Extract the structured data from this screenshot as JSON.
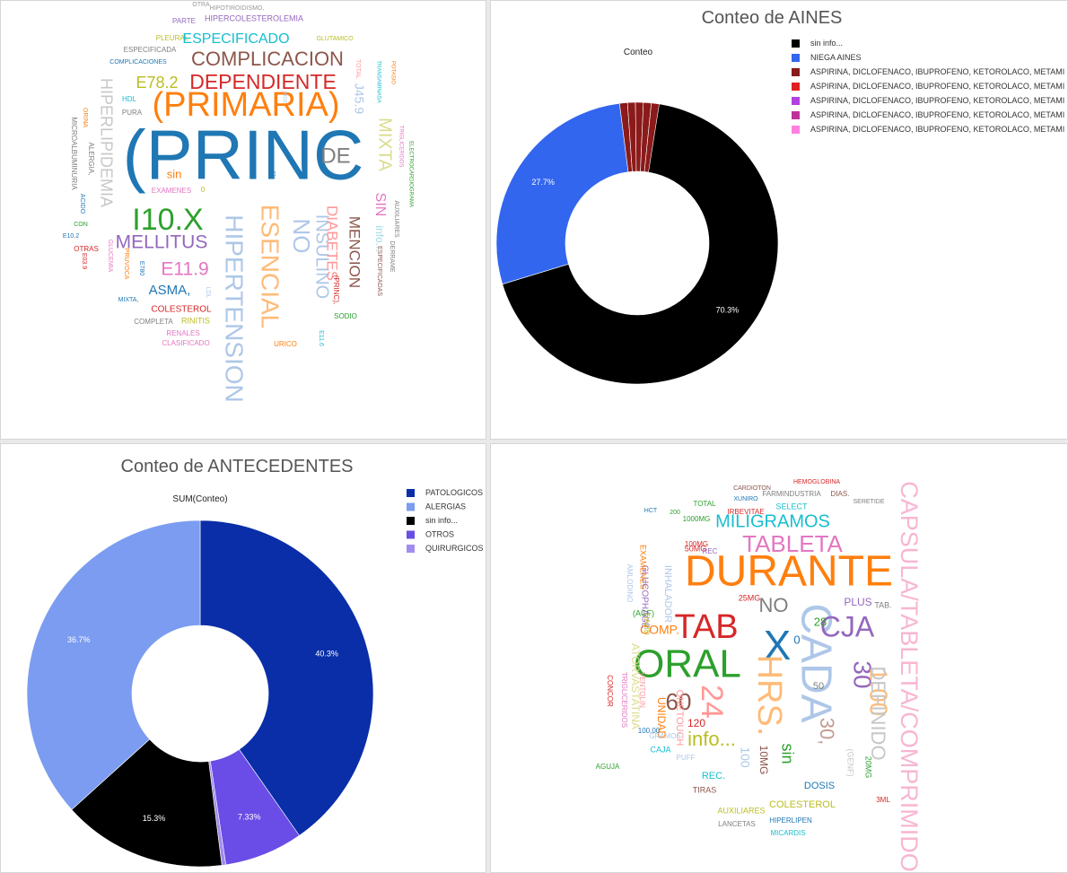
{
  "wordcloud1": {
    "words": [
      {
        "text": "OTRA",
        "color": "#999999"
      },
      {
        "text": "HIPOTIROIDISMO,",
        "color": "#999999"
      },
      {
        "text": "PARTE",
        "color": "#9467bd"
      },
      {
        "text": "HIPERCOLESTEROLEMIA",
        "color": "#9467bd"
      },
      {
        "text": "PLEURAL",
        "color": "#bcbd22"
      },
      {
        "text": "ESPECIFICADO",
        "color": "#17becf"
      },
      {
        "text": "GLUTAMICO",
        "color": "#bcbd22"
      },
      {
        "text": "ESPECIFICADA",
        "color": "#7f7f7f"
      },
      {
        "text": "COMPLICACION",
        "color": "#8c564b"
      },
      {
        "text": "COMPLICACIONES",
        "color": "#1f77b4"
      },
      {
        "text": "E78.2",
        "color": "#bcbd22"
      },
      {
        "text": "DEPENDIENTE",
        "color": "#d62728"
      },
      {
        "text": "(PRIMARIA)",
        "color": "#ff7f0e"
      },
      {
        "text": "HIPERLIPIDEMIA",
        "color": "#c7c7c7"
      },
      {
        "text": "HDL",
        "color": "#17becf"
      },
      {
        "text": "PURA",
        "color": "#7f7f7f"
      },
      {
        "text": "(PRINC",
        "color": "#1f77b4"
      },
      {
        "text": "DE",
        "color": "#7f7f7f"
      },
      {
        "text": "sin",
        "color": "#ff7f0e"
      },
      {
        "text": "EXAMENES",
        "color": "#e377c2"
      },
      {
        "text": "I10.X",
        "color": "#2ca02c"
      },
      {
        "text": "MELLITUS",
        "color": "#9467bd"
      },
      {
        "text": "E11.9",
        "color": "#e377c2"
      },
      {
        "text": "ASMA,",
        "color": "#1f77b4"
      },
      {
        "text": "COLESTEROL",
        "color": "#d62728"
      },
      {
        "text": "COMPLETA",
        "color": "#7f7f7f"
      },
      {
        "text": "RINITIS",
        "color": "#bcbd22"
      },
      {
        "text": "RENALES",
        "color": "#e377c2"
      },
      {
        "text": "CLASIFICADO",
        "color": "#e377c2"
      },
      {
        "text": "HIPERTENSION",
        "color": "#aec7e8"
      },
      {
        "text": "ESENCIAL",
        "color": "#ffbb78"
      },
      {
        "text": "NO",
        "color": "#aec7e8"
      },
      {
        "text": "INSULINO",
        "color": "#aec7e8"
      },
      {
        "text": "DIABETES",
        "color": "#ff9896"
      },
      {
        "text": "MENCION",
        "color": "#8c564b"
      },
      {
        "text": "MIXTA",
        "color": "#dbdb8d"
      },
      {
        "text": "SIN",
        "color": "#e377c2"
      },
      {
        "text": "info...",
        "color": "#9edae5"
      },
      {
        "text": "J45.9",
        "color": "#aec7e8"
      },
      {
        "text": "URICO",
        "color": "#ff7f0e"
      },
      {
        "text": "SODIO",
        "color": "#2ca02c"
      },
      {
        "text": "(PRINC),",
        "color": "#d62728"
      },
      {
        "text": "E11.6",
        "color": "#17becf"
      },
      {
        "text": "TOTAL",
        "color": "#ff9896"
      },
      {
        "text": "TRANSAMINASA",
        "color": "#17becf"
      },
      {
        "text": "POTASIO",
        "color": "#ff7f0e"
      },
      {
        "text": "TRIGLICERIDOS",
        "color": "#e377c2"
      },
      {
        "text": "ELECTROCARDIOGRAMA",
        "color": "#2ca02c"
      },
      {
        "text": "AUXILIARES",
        "color": "#7f7f7f"
      },
      {
        "text": "DERRAME",
        "color": "#7f7f7f"
      },
      {
        "text": "ESPECIFICADAS",
        "color": "#8c564b"
      },
      {
        "text": "ORINA",
        "color": "#ff7f0e"
      },
      {
        "text": "MICROALBUMINURIA",
        "color": "#7f7f7f"
      },
      {
        "text": "ALERGIA,",
        "color": "#7f7f7f"
      },
      {
        "text": "ACIDO",
        "color": "#1f77b4"
      },
      {
        "text": "CON",
        "color": "#2ca02c"
      },
      {
        "text": "E10.2",
        "color": "#1f77b4"
      },
      {
        "text": "OTRAS",
        "color": "#d62728"
      },
      {
        "text": "E03.9",
        "color": "#d62728"
      },
      {
        "text": "GLUCEMIA",
        "color": "#e377c2"
      },
      {
        "text": "PRUVOCA",
        "color": "#ff7f0e"
      },
      {
        "text": "E780",
        "color": "#1f77b4"
      },
      {
        "text": "MIXTA,",
        "color": "#1f77b4"
      },
      {
        "text": "LDL",
        "color": "#aec7e8"
      },
      {
        "text": "J30X",
        "color": "#aec7e8"
      },
      {
        "text": "EN",
        "color": "#1f77b4"
      },
      {
        "text": "0",
        "color": "#bcbd22"
      }
    ]
  },
  "chart_aines": {
    "title": "Conteo de AINES",
    "subtitle": "Conteo",
    "chart_data": {
      "type": "pie",
      "title": "Conteo de AINES",
      "categories": [
        "sin info...",
        "NIEGA AINES",
        "ASPIRINA, DICLOFENACO, IBUPROFENO, KETOROLACO, METAMI",
        "ASPIRINA, DICLOFENACO, IBUPROFENO, KETOROLACO, METAMI",
        "ASPIRINA, DICLOFENACO, IBUPROFENO, KETOROLACO, METAMI",
        "ASPIRINA, DICLOFENACO, IBUPROFENO, KETOROLACO, METAMI",
        "ASPIRINA, DICLOFENACO, IBUPROFENO, KETOROLACO, METAMI"
      ],
      "values": [
        70.3,
        27.7,
        0.9,
        0.4,
        0.3,
        0.2,
        0.2
      ],
      "value_labels": [
        "70.3%",
        "27.7%",
        "",
        "",
        "",
        "",
        ""
      ],
      "colors": [
        "#000000",
        "#3366ee",
        "#8b1a1a",
        "#e02020",
        "#b040e0",
        "#c0309a",
        "#ff80e0"
      ],
      "legend_position": "top-right"
    }
  },
  "chart_antecedentes": {
    "title": "Conteo de ANTECEDENTES",
    "subtitle": "SUM(Conteo)",
    "chart_data": {
      "type": "pie",
      "title": "Conteo de ANTECEDENTES",
      "categories": [
        "PATOLOGICOS",
        "ALERGIAS",
        "sin info...",
        "OTROS",
        "QUIRURGICOS"
      ],
      "values": [
        40.3,
        36.7,
        15.3,
        7.33,
        0.37
      ],
      "value_labels": [
        "40.3%",
        "36.7%",
        "15.3%",
        "7.33%",
        ""
      ],
      "colors": [
        "#0a2ea8",
        "#7b9cf0",
        "#000000",
        "#6a4de6",
        "#a28cf0"
      ],
      "order": [
        "PATOLOGICOS",
        "OTROS",
        "QUIRURGICOS",
        "sin info...",
        "ALERGIAS"
      ],
      "legend_position": "top-right"
    }
  },
  "wordcloud2": {
    "words": [
      {
        "text": "DURANTE",
        "color": "#ff7f0e"
      },
      {
        "text": "TABLETA",
        "color": "#e377c2"
      },
      {
        "text": "MILIGRAMOS",
        "color": "#17becf"
      },
      {
        "text": "CAPSULA/TABLETA/COMPRIMIDO",
        "color": "#f7b6d2"
      },
      {
        "text": "TAB",
        "color": "#d62728"
      },
      {
        "text": "CADA",
        "color": "#aec7e8"
      },
      {
        "text": "CJA",
        "color": "#9467bd"
      },
      {
        "text": "ORAL",
        "color": "#2ca02c"
      },
      {
        "text": "X",
        "color": "#1f77b4"
      },
      {
        "text": "HRS.",
        "color": "#ffbb78"
      },
      {
        "text": "24",
        "color": "#ff9896"
      },
      {
        "text": "60",
        "color": "#8c564b"
      },
      {
        "text": "NO",
        "color": "#7f7f7f"
      },
      {
        "text": "30",
        "color": "#9467bd"
      },
      {
        "text": "1.00",
        "color": "#ffbb78"
      },
      {
        "text": "30,",
        "color": "#c49c94"
      },
      {
        "text": "DEFINIDO",
        "color": "#c7c7c7"
      },
      {
        "text": "info...",
        "color": "#bcbd22"
      },
      {
        "text": "120",
        "color": "#d62728"
      },
      {
        "text": "COMP.",
        "color": "#ff7f0e"
      },
      {
        "text": "28",
        "color": "#2ca02c"
      },
      {
        "text": "50",
        "color": "#7f7f7f"
      },
      {
        "text": "0",
        "color": "#1f77b4"
      },
      {
        "text": "PLUS",
        "color": "#9467bd"
      },
      {
        "text": "TAB.",
        "color": "#7f7f7f"
      },
      {
        "text": "COLESTEROL",
        "color": "#bcbd22"
      },
      {
        "text": "DOSIS",
        "color": "#1f77b4"
      },
      {
        "text": "sin",
        "color": "#2ca02c"
      },
      {
        "text": "100",
        "color": "#aec7e8"
      },
      {
        "text": "10MG",
        "color": "#8c564b"
      },
      {
        "text": "ATORVASTATINA",
        "color": "#dbdb8d"
      },
      {
        "text": "INHALADOR",
        "color": "#aec7e8"
      },
      {
        "text": "GLUCOPHAGE",
        "color": "#9467bd"
      },
      {
        "text": "UNIDAD",
        "color": "#ff7f0e"
      },
      {
        "text": "ONETOUCH",
        "color": "#ff9896"
      },
      {
        "text": "AUXILIARES",
        "color": "#bcbd22"
      },
      {
        "text": "LANCETAS",
        "color": "#7f7f7f"
      },
      {
        "text": "HIPERLIPEN",
        "color": "#1f77b4"
      },
      {
        "text": "MICARDIS",
        "color": "#17becf"
      },
      {
        "text": "REC.",
        "color": "#17becf"
      },
      {
        "text": "TIRAS",
        "color": "#8c564b"
      },
      {
        "text": "SELECT",
        "color": "#17becf"
      },
      {
        "text": "TOTAL",
        "color": "#2ca02c"
      },
      {
        "text": "100MG",
        "color": "#d62728"
      },
      {
        "text": "1000MG",
        "color": "#2ca02c"
      },
      {
        "text": "50MG",
        "color": "#d62728"
      },
      {
        "text": "FARMINDUSTRIA",
        "color": "#7f7f7f"
      },
      {
        "text": "DIAS.",
        "color": "#8c564b"
      },
      {
        "text": "HEMOGLOBINA",
        "color": "#d62728"
      },
      {
        "text": "CARDIOTON",
        "color": "#8c564b"
      },
      {
        "text": "XUNIRO",
        "color": "#1f77b4"
      },
      {
        "text": "IRBEVITAE",
        "color": "#d62728"
      },
      {
        "text": "SERETIDE",
        "color": "#7f7f7f"
      },
      {
        "text": "(ACF)",
        "color": "#2ca02c"
      },
      {
        "text": "20MG",
        "color": "#2ca02c"
      },
      {
        "text": "(GENF)",
        "color": "#c7c7c7"
      },
      {
        "text": "3ML",
        "color": "#d62728"
      },
      {
        "text": "AGUJA",
        "color": "#2ca02c"
      },
      {
        "text": "CAJA",
        "color": "#17becf"
      },
      {
        "text": "PUFF",
        "color": "#aec7e8"
      },
      {
        "text": "100.00",
        "color": "#1f77b4"
      },
      {
        "text": "GRAMOS",
        "color": "#aec7e8"
      },
      {
        "text": "VENTOLIN",
        "color": "#ff9896"
      },
      {
        "text": "TRIGLICERIDOS",
        "color": "#e377c2"
      },
      {
        "text": "CONCOR",
        "color": "#d62728"
      },
      {
        "text": "AMLODINO",
        "color": "#aec7e8"
      },
      {
        "text": "EXAMENES",
        "color": "#ff7f0e"
      },
      {
        "text": "TIAZID",
        "color": "#bcbd22"
      },
      {
        "text": "HCT",
        "color": "#1f77b4"
      },
      {
        "text": "REC",
        "color": "#9467bd"
      },
      {
        "text": "200",
        "color": "#2ca02c"
      },
      {
        "text": "25MG",
        "color": "#d62728"
      }
    ]
  }
}
